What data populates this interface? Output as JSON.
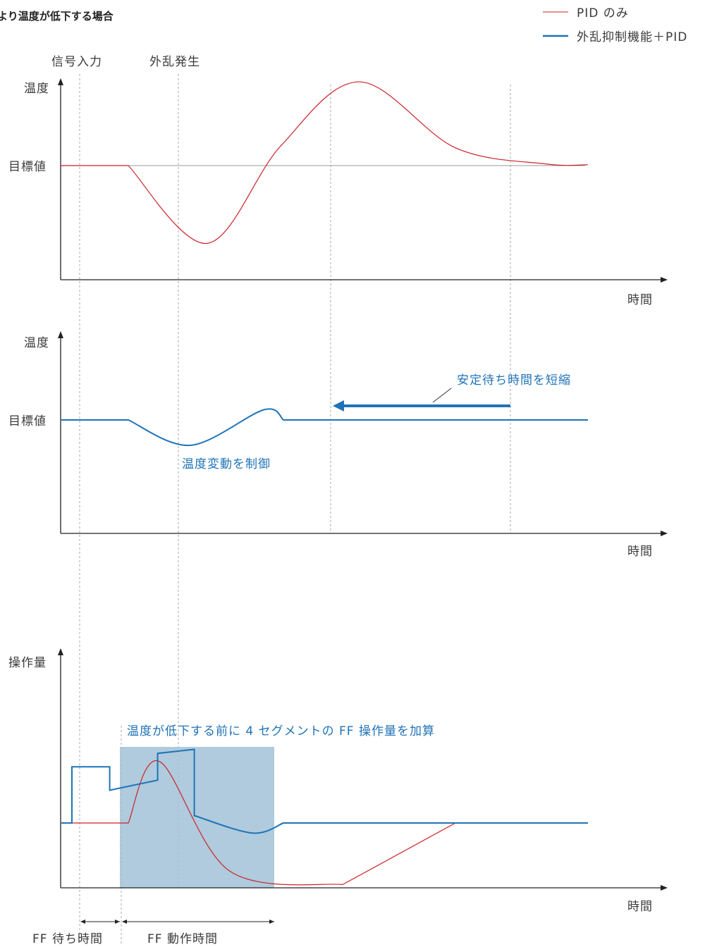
{
  "title": "より温度が低下する場合",
  "legend": {
    "pid_only": "PID のみ",
    "suppression_pid": "外乱抑制機能＋PID"
  },
  "events": {
    "signal_input": "信号入力",
    "disturbance": "外乱発生"
  },
  "colors": {
    "pid_only": "#cc2229",
    "suppression_pid": "#1f73b7",
    "ff_region": "#9dbfd6",
    "axis": "#222222",
    "reference": "#999999",
    "guide": "#aaaaaa"
  },
  "chart_data": [
    {
      "type": "line",
      "xlabel": "時間",
      "ylabel": "温度",
      "ytick": "目標値",
      "series": [
        {
          "name": "PID のみ",
          "points": [
            [
              0.0,
              0
            ],
            [
              1.2,
              0
            ],
            [
              2.6,
              -0.92
            ],
            [
              3.9,
              0.23
            ],
            [
              5.3,
              0.99
            ],
            [
              7.0,
              0.21
            ],
            [
              8.6,
              0.02
            ],
            [
              9.35,
              0.01
            ]
          ]
        }
      ]
    },
    {
      "type": "line",
      "xlabel": "時間",
      "ylabel": "温度",
      "ytick": "目標値",
      "annotations": [
        "温度変動を制御",
        "安定待ち時間を短縮"
      ],
      "series": [
        {
          "name": "外乱抑制機能＋PID",
          "points": [
            [
              0.0,
              0
            ],
            [
              1.2,
              0
            ],
            [
              2.3,
              -0.3
            ],
            [
              3.6,
              0.12
            ],
            [
              3.95,
              0
            ],
            [
              9.35,
              0
            ]
          ]
        }
      ]
    },
    {
      "type": "line",
      "xlabel": "時間",
      "ylabel": "操作量",
      "annotations": [
        "温度が低下する前に 4 セグメントの FF 操作量を加算",
        "FF 待ち時間",
        "FF 動作時間"
      ],
      "series": [
        {
          "name": "PID のみ",
          "points": [
            [
              0.0,
              0
            ],
            [
              0.2,
              0
            ],
            [
              1.2,
              0
            ],
            [
              1.75,
              0.92
            ],
            [
              3.0,
              -0.72
            ],
            [
              5.0,
              -0.92
            ],
            [
              7.0,
              0
            ],
            [
              9.35,
              0
            ]
          ]
        },
        {
          "name": "外乱抑制機能＋PID",
          "points": [
            [
              0.0,
              0
            ],
            [
              0.2,
              0
            ],
            [
              0.2,
              0.84
            ],
            [
              0.87,
              0.84
            ],
            [
              0.87,
              0.49
            ],
            [
              1.72,
              0.64
            ],
            [
              1.72,
              1.04
            ],
            [
              2.37,
              1.1
            ],
            [
              2.37,
              0.11
            ],
            [
              3.4,
              -0.15
            ],
            [
              3.95,
              0
            ],
            [
              9.35,
              0
            ]
          ]
        }
      ]
    }
  ]
}
